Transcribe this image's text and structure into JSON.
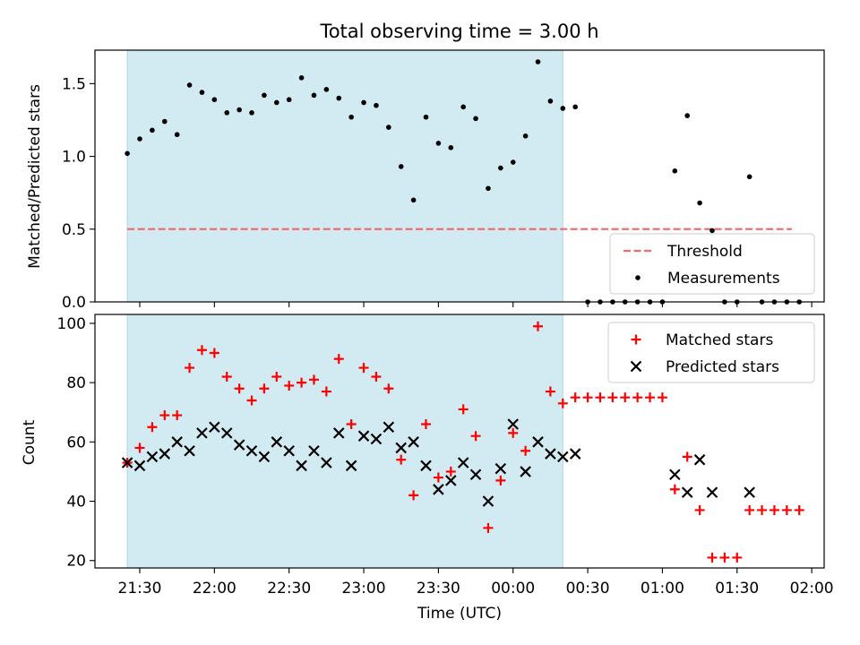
{
  "figure": {
    "title": "Total observing time = 3.00 h"
  },
  "chart_data": [
    {
      "type": "scatter",
      "panel": "top",
      "ylabel": "Matched/Predicted stars",
      "ylim": [
        0,
        1.73
      ],
      "yticks": [
        0.0,
        0.5,
        1.0,
        1.5
      ],
      "ytick_labels": [
        "0.0",
        "0.5",
        "1.0",
        "1.5"
      ],
      "grid": false,
      "legend_position": "lower-right",
      "shaded_interval": {
        "start": "21:25",
        "end": "00:20",
        "color": "#add8e6"
      },
      "threshold": {
        "name": "Threshold",
        "value": 0.5,
        "x_start": "21:25",
        "x_end": "01:52",
        "color": "#f26d6d",
        "style": "dashed"
      },
      "series": [
        {
          "name": "Measurements",
          "marker": "dot",
          "color": "#000000",
          "points": [
            [
              "21:25",
              1.02
            ],
            [
              "21:30",
              1.12
            ],
            [
              "21:35",
              1.18
            ],
            [
              "21:40",
              1.24
            ],
            [
              "21:45",
              1.15
            ],
            [
              "21:50",
              1.49
            ],
            [
              "21:55",
              1.44
            ],
            [
              "22:00",
              1.39
            ],
            [
              "22:05",
              1.3
            ],
            [
              "22:10",
              1.32
            ],
            [
              "22:15",
              1.3
            ],
            [
              "22:20",
              1.42
            ],
            [
              "22:25",
              1.37
            ],
            [
              "22:30",
              1.39
            ],
            [
              "22:35",
              1.54
            ],
            [
              "22:40",
              1.42
            ],
            [
              "22:45",
              1.46
            ],
            [
              "22:50",
              1.4
            ],
            [
              "22:55",
              1.27
            ],
            [
              "23:00",
              1.37
            ],
            [
              "23:05",
              1.35
            ],
            [
              "23:10",
              1.2
            ],
            [
              "23:15",
              0.93
            ],
            [
              "23:20",
              0.7
            ],
            [
              "23:25",
              1.27
            ],
            [
              "23:30",
              1.09
            ],
            [
              "23:35",
              1.06
            ],
            [
              "23:40",
              1.34
            ],
            [
              "23:45",
              1.26
            ],
            [
              "23:50",
              0.78
            ],
            [
              "23:55",
              0.92
            ],
            [
              "00:00",
              0.96
            ],
            [
              "00:05",
              1.14
            ],
            [
              "00:10",
              1.65
            ],
            [
              "00:15",
              1.38
            ],
            [
              "00:20",
              1.33
            ],
            [
              "00:25",
              1.34
            ],
            [
              "00:30",
              0.0
            ],
            [
              "00:35",
              0.0
            ],
            [
              "00:40",
              0.0
            ],
            [
              "00:45",
              0.0
            ],
            [
              "00:50",
              0.0
            ],
            [
              "00:55",
              0.0
            ],
            [
              "01:00",
              0.0
            ],
            [
              "01:05",
              0.9
            ],
            [
              "01:10",
              1.28
            ],
            [
              "01:15",
              0.68
            ],
            [
              "01:20",
              0.49
            ],
            [
              "01:25",
              0.0
            ],
            [
              "01:30",
              0.0
            ],
            [
              "01:35",
              0.86
            ],
            [
              "01:40",
              0.0
            ],
            [
              "01:45",
              0.0
            ],
            [
              "01:50",
              0.0
            ],
            [
              "01:55",
              0.0
            ]
          ]
        }
      ]
    },
    {
      "type": "scatter",
      "panel": "bottom",
      "xlabel": "Time (UTC)",
      "ylabel": "Count",
      "ylim": [
        17.5,
        103
      ],
      "yticks": [
        20,
        40,
        60,
        80,
        100
      ],
      "ytick_labels": [
        "20",
        "40",
        "60",
        "80",
        "100"
      ],
      "xlim": [
        "21:12",
        "02:05"
      ],
      "xticks": [
        "21:30",
        "22:00",
        "22:30",
        "23:00",
        "23:30",
        "00:00",
        "00:30",
        "01:00",
        "01:30",
        "02:00"
      ],
      "grid": false,
      "legend_position": "top-right",
      "shaded_interval": {
        "start": "21:25",
        "end": "00:20",
        "color": "#add8e6"
      },
      "series": [
        {
          "name": "Matched stars",
          "marker": "plus",
          "color": "#ff0000",
          "points": [
            [
              "21:25",
              53
            ],
            [
              "21:30",
              58
            ],
            [
              "21:35",
              65
            ],
            [
              "21:40",
              69
            ],
            [
              "21:45",
              69
            ],
            [
              "21:50",
              85
            ],
            [
              "21:55",
              91
            ],
            [
              "22:00",
              90
            ],
            [
              "22:05",
              82
            ],
            [
              "22:10",
              78
            ],
            [
              "22:15",
              74
            ],
            [
              "22:20",
              78
            ],
            [
              "22:25",
              82
            ],
            [
              "22:30",
              79
            ],
            [
              "22:35",
              80
            ],
            [
              "22:40",
              81
            ],
            [
              "22:45",
              77
            ],
            [
              "22:50",
              88
            ],
            [
              "22:55",
              66
            ],
            [
              "23:00",
              85
            ],
            [
              "23:05",
              82
            ],
            [
              "23:10",
              78
            ],
            [
              "23:15",
              54
            ],
            [
              "23:20",
              42
            ],
            [
              "23:25",
              66
            ],
            [
              "23:30",
              48
            ],
            [
              "23:35",
              50
            ],
            [
              "23:40",
              71
            ],
            [
              "23:45",
              62
            ],
            [
              "23:50",
              31
            ],
            [
              "23:55",
              47
            ],
            [
              "00:00",
              63
            ],
            [
              "00:05",
              57
            ],
            [
              "00:10",
              99
            ],
            [
              "00:15",
              77
            ],
            [
              "00:20",
              73
            ],
            [
              "00:25",
              75
            ],
            [
              "00:30",
              75
            ],
            [
              "00:35",
              75
            ],
            [
              "00:40",
              75
            ],
            [
              "00:45",
              75
            ],
            [
              "00:50",
              75
            ],
            [
              "00:55",
              75
            ],
            [
              "01:00",
              75
            ],
            [
              "01:05",
              44
            ],
            [
              "01:10",
              55
            ],
            [
              "01:15",
              37
            ],
            [
              "01:20",
              21
            ],
            [
              "01:25",
              21
            ],
            [
              "01:30",
              21
            ],
            [
              "01:35",
              37
            ],
            [
              "01:40",
              37
            ],
            [
              "01:45",
              37
            ],
            [
              "01:50",
              37
            ],
            [
              "01:55",
              37
            ]
          ]
        },
        {
          "name": "Predicted stars",
          "marker": "x",
          "color": "#000000",
          "points": [
            [
              "21:25",
              53
            ],
            [
              "21:30",
              52
            ],
            [
              "21:35",
              55
            ],
            [
              "21:40",
              56
            ],
            [
              "21:45",
              60
            ],
            [
              "21:50",
              57
            ],
            [
              "21:55",
              63
            ],
            [
              "22:00",
              65
            ],
            [
              "22:05",
              63
            ],
            [
              "22:10",
              59
            ],
            [
              "22:15",
              57
            ],
            [
              "22:20",
              55
            ],
            [
              "22:25",
              60
            ],
            [
              "22:30",
              57
            ],
            [
              "22:35",
              52
            ],
            [
              "22:40",
              57
            ],
            [
              "22:45",
              53
            ],
            [
              "22:50",
              63
            ],
            [
              "22:55",
              52
            ],
            [
              "23:00",
              62
            ],
            [
              "23:05",
              61
            ],
            [
              "23:10",
              65
            ],
            [
              "23:15",
              58
            ],
            [
              "23:20",
              60
            ],
            [
              "23:25",
              52
            ],
            [
              "23:30",
              44
            ],
            [
              "23:35",
              47
            ],
            [
              "23:40",
              53
            ],
            [
              "23:45",
              49
            ],
            [
              "23:50",
              40
            ],
            [
              "23:55",
              51
            ],
            [
              "00:00",
              66
            ],
            [
              "00:05",
              50
            ],
            [
              "00:10",
              60
            ],
            [
              "00:15",
              56
            ],
            [
              "00:20",
              55
            ],
            [
              "00:25",
              56
            ],
            [
              "01:05",
              49
            ],
            [
              "01:10",
              43
            ],
            [
              "01:15",
              54
            ],
            [
              "01:20",
              43
            ],
            [
              "01:35",
              43
            ]
          ]
        }
      ]
    }
  ]
}
